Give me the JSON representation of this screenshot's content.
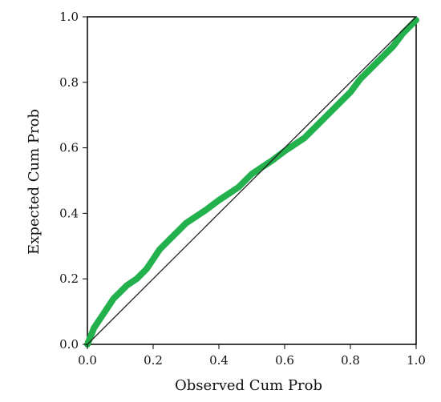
{
  "chart_data": {
    "type": "line",
    "xlabel": "Observed Cum Prob",
    "ylabel": "Expected Cum Prob",
    "xlim": [
      0.0,
      1.0
    ],
    "ylim": [
      0.0,
      1.0
    ],
    "grid": false,
    "x_ticks": [
      "0.0",
      "0.2",
      "0.4",
      "0.6",
      "0.8",
      "1.0"
    ],
    "y_ticks": [
      "0.0",
      "0.2",
      "0.4",
      "0.6",
      "0.8",
      "1.0"
    ],
    "colors": {
      "series": "#22b14c",
      "reference": "#222222",
      "axis": "#000000"
    },
    "reference_line": {
      "x": [
        0.0,
        1.0
      ],
      "y": [
        0.0,
        1.0
      ]
    },
    "series": [
      {
        "x": [
          0.0,
          0.02,
          0.04,
          0.06,
          0.08,
          0.1,
          0.12,
          0.15,
          0.18,
          0.2,
          0.22,
          0.25,
          0.28,
          0.3,
          0.33,
          0.36,
          0.4,
          0.43,
          0.46,
          0.5,
          0.53,
          0.56,
          0.6,
          0.63,
          0.66,
          0.7,
          0.73,
          0.76,
          0.8,
          0.83,
          0.86,
          0.9,
          0.93,
          0.96,
          1.0
        ],
        "y": [
          0.0,
          0.05,
          0.08,
          0.11,
          0.14,
          0.16,
          0.18,
          0.2,
          0.23,
          0.26,
          0.29,
          0.32,
          0.35,
          0.37,
          0.39,
          0.41,
          0.44,
          0.46,
          0.48,
          0.52,
          0.54,
          0.56,
          0.59,
          0.61,
          0.63,
          0.67,
          0.7,
          0.73,
          0.77,
          0.81,
          0.84,
          0.88,
          0.91,
          0.95,
          0.99
        ]
      }
    ]
  }
}
